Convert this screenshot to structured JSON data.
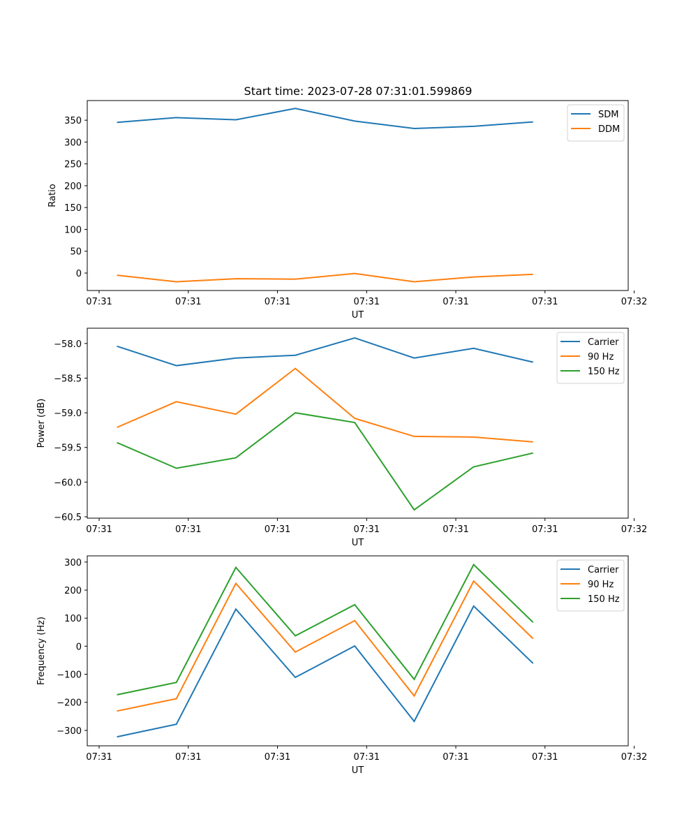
{
  "title": "Start time: 2023-07-28 07:31:01.599869",
  "chart_data": [
    {
      "type": "line",
      "xlabel": "UT",
      "ylabel": "Ratio",
      "x_tick_labels": [
        "07:31",
        "07:31",
        "07:31",
        "07:31",
        "07:31",
        "07:31",
        "07:32"
      ],
      "xlim": [
        -0.5,
        8.6
      ],
      "ylim": [
        -40,
        395
      ],
      "y_ticks": [
        0,
        50,
        100,
        150,
        200,
        250,
        300,
        350
      ],
      "y_tick_labels": [
        "0",
        "50",
        "100",
        "150",
        "200",
        "250",
        "300",
        "350"
      ],
      "x": [
        0,
        1,
        2,
        3,
        4,
        5,
        6,
        7
      ],
      "series": [
        {
          "name": "SDM",
          "color": "#1f77b4",
          "values": [
            345,
            356,
            351,
            377,
            348,
            331,
            336,
            346
          ]
        },
        {
          "name": "DDM",
          "color": "#ff7f0e",
          "values": [
            -5,
            -20,
            -13,
            -14,
            -1,
            -20,
            -9,
            -3
          ]
        }
      ],
      "legend_position": "top-right"
    },
    {
      "type": "line",
      "xlabel": "UT",
      "ylabel": "Power (dB)",
      "x_tick_labels": [
        "07:31",
        "07:31",
        "07:31",
        "07:31",
        "07:31",
        "07:31",
        "07:32"
      ],
      "xlim": [
        -0.5,
        8.6
      ],
      "ylim": [
        -60.52,
        -57.78
      ],
      "y_ticks": [
        -60.5,
        -60.0,
        -59.5,
        -59.0,
        -58.5,
        -58.0
      ],
      "y_tick_labels": [
        "−60.5",
        "−60.0",
        "−59.5",
        "−59.0",
        "−58.5",
        "−58.0"
      ],
      "x": [
        0,
        1,
        2,
        3,
        4,
        5,
        6,
        7
      ],
      "series": [
        {
          "name": "Carrier",
          "color": "#1f77b4",
          "values": [
            -58.04,
            -58.32,
            -58.21,
            -58.17,
            -57.92,
            -58.21,
            -58.07,
            -58.27
          ]
        },
        {
          "name": "90 Hz",
          "color": "#ff7f0e",
          "values": [
            -59.21,
            -58.84,
            -59.02,
            -58.36,
            -59.08,
            -59.34,
            -59.35,
            -59.42
          ]
        },
        {
          "name": "150 Hz",
          "color": "#2ca02c",
          "values": [
            -59.43,
            -59.8,
            -59.65,
            -59.0,
            -59.14,
            -60.4,
            -59.78,
            -59.58
          ]
        }
      ],
      "legend_position": "top-right"
    },
    {
      "type": "line",
      "xlabel": "UT",
      "ylabel": "Frequency (Hz)",
      "x_tick_labels": [
        "07:31",
        "07:31",
        "07:31",
        "07:31",
        "07:31",
        "07:31",
        "07:32"
      ],
      "xlim": [
        -0.5,
        8.6
      ],
      "ylim": [
        -355,
        322
      ],
      "y_ticks": [
        -300,
        -200,
        -100,
        0,
        100,
        200,
        300
      ],
      "y_tick_labels": [
        "−300",
        "−200",
        "−100",
        "0",
        "100",
        "200",
        "300"
      ],
      "x": [
        0,
        1,
        2,
        3,
        4,
        5,
        6,
        7
      ],
      "series": [
        {
          "name": "Carrier",
          "color": "#1f77b4",
          "values": [
            -323,
            -278,
            132,
            -111,
            1,
            -268,
            143,
            -61
          ]
        },
        {
          "name": "90 Hz",
          "color": "#ff7f0e",
          "values": [
            -231,
            -187,
            224,
            -21,
            91,
            -177,
            232,
            27
          ]
        },
        {
          "name": "150 Hz",
          "color": "#2ca02c",
          "values": [
            -173,
            -129,
            281,
            37,
            148,
            -118,
            291,
            85
          ]
        }
      ],
      "legend_position": "top-right"
    }
  ]
}
